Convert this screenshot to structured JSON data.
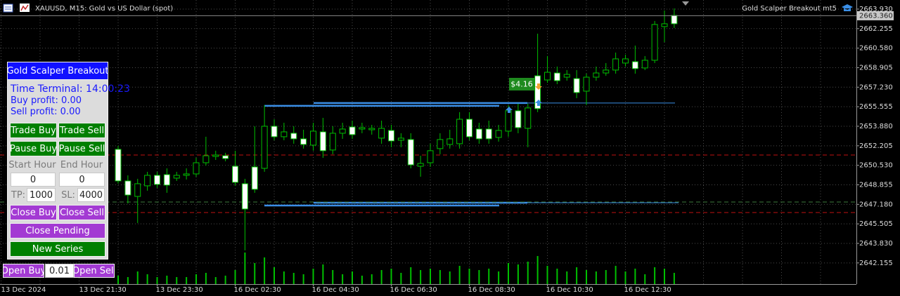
{
  "header": {
    "symbol": "XAUUSD, M15:  Gold vs US Dollar (spot)",
    "expert": "Gold Scalper Breakout mt5"
  },
  "chart_data": {
    "type": "candlestick",
    "earlier_labels": [
      "13 Dec 2024",
      "13 Dec 21:30"
    ],
    "categories": [
      null,
      null,
      null,
      null,
      "13 Dec 23:30",
      null,
      null,
      null,
      null,
      null,
      null,
      null,
      "16 Dec 02:30",
      null,
      null,
      null,
      null,
      null,
      null,
      null,
      "16 Dec 04:30",
      null,
      null,
      null,
      null,
      null,
      null,
      null,
      "16 Dec 06:30",
      null,
      null,
      null,
      null,
      null,
      null,
      null,
      "16 Dec 08:30",
      null,
      null,
      null,
      null,
      null,
      null,
      null,
      "16 Dec 10:30",
      null,
      null,
      null,
      null,
      null,
      null,
      null,
      "16 Dec 12:30",
      null,
      null,
      null,
      null,
      null
    ],
    "candles": [
      [
        2649.19,
        2652.2,
        2648.95,
        2651.9
      ],
      [
        2647.98,
        2649.67,
        2647.26,
        2649.19
      ],
      [
        2648.95,
        2649.37,
        2645.58,
        2647.86
      ],
      [
        2649.67,
        2649.97,
        2648.35,
        2648.77
      ],
      [
        2648.89,
        2649.97,
        2648.59,
        2649.67
      ],
      [
        2648.83,
        2650.27,
        2648.17,
        2649.73
      ],
      [
        2649.67,
        2649.97,
        2649.19,
        2649.43
      ],
      [
        2649.79,
        2650.27,
        2649.31,
        2649.67
      ],
      [
        2650.75,
        2651.17,
        2649.55,
        2649.79
      ],
      [
        2651.35,
        2652.98,
        2650.51,
        2650.75
      ],
      [
        2651.41,
        2651.78,
        2650.99,
        2651.29
      ],
      [
        2651.11,
        2651.6,
        2650.87,
        2651.35
      ],
      [
        2649.07,
        2651.78,
        2648.77,
        2650.45
      ],
      [
        2646.78,
        2649.37,
        2643.23,
        2648.95
      ],
      [
        2648.47,
        2653.88,
        2648.17,
        2650.39
      ],
      [
        2653.88,
        2655.69,
        2649.97,
        2650.27
      ],
      [
        2652.98,
        2654.48,
        2652.68,
        2653.88
      ],
      [
        2653.4,
        2654.18,
        2652.68,
        2652.98
      ],
      [
        2652.8,
        2653.88,
        2652.38,
        2653.28
      ],
      [
        2652.32,
        2653.58,
        2651.96,
        2652.8
      ],
      [
        2653.46,
        2654.18,
        2651.78,
        2652.26
      ],
      [
        2651.78,
        2654.6,
        2651.17,
        2653.4
      ],
      [
        2653.28,
        2653.88,
        2651.48,
        2651.84
      ],
      [
        2653.64,
        2654.18,
        2652.8,
        2653.28
      ],
      [
        2653.16,
        2654.36,
        2652.8,
        2653.82
      ],
      [
        2653.76,
        2654.18,
        2653.28,
        2653.64
      ],
      [
        2653.7,
        2654.0,
        2653.16,
        2653.58
      ],
      [
        2653.7,
        2654.36,
        2652.38,
        2652.86
      ],
      [
        2652.62,
        2654.0,
        2652.08,
        2653.52
      ],
      [
        2652.86,
        2653.28,
        2652.08,
        2652.68
      ],
      [
        2650.57,
        2653.28,
        2650.27,
        2652.74
      ],
      [
        2650.69,
        2651.35,
        2649.55,
        2650.45
      ],
      [
        2651.78,
        2652.38,
        2650.39,
        2650.75
      ],
      [
        2652.74,
        2653.28,
        2651.48,
        2651.96
      ],
      [
        2652.8,
        2653.58,
        2651.96,
        2652.32
      ],
      [
        2654.48,
        2655.09,
        2651.96,
        2652.38
      ],
      [
        2652.98,
        2655.09,
        2652.68,
        2654.48
      ],
      [
        2652.8,
        2654.18,
        2652.38,
        2653.64
      ],
      [
        2652.8,
        2654.36,
        2652.38,
        2653.64
      ],
      [
        2653.52,
        2654.0,
        2652.56,
        2652.92
      ],
      [
        2655.21,
        2655.69,
        2652.98,
        2653.46
      ],
      [
        2653.76,
        2655.81,
        2653.28,
        2655.21
      ],
      [
        2655.45,
        2655.81,
        2652.08,
        2653.7
      ],
      [
        2655.39,
        2661.82,
        2655.09,
        2658.21
      ],
      [
        2658.51,
        2659.9,
        2657.61,
        2657.85
      ],
      [
        2657.79,
        2659.0,
        2657.49,
        2658.45
      ],
      [
        2658.33,
        2658.7,
        2657.79,
        2658.09
      ],
      [
        2656.77,
        2658.7,
        2656.29,
        2657.97
      ],
      [
        2658.09,
        2658.39,
        2655.69,
        2656.89
      ],
      [
        2658.45,
        2659.0,
        2657.79,
        2658.09
      ],
      [
        2658.7,
        2659.3,
        2658.21,
        2658.45
      ],
      [
        2659.66,
        2660.2,
        2658.39,
        2658.7
      ],
      [
        2659.66,
        2660.02,
        2659.0,
        2659.3
      ],
      [
        2658.82,
        2660.8,
        2658.39,
        2659.42
      ],
      [
        2659.54,
        2659.9,
        2658.7,
        2658.88
      ],
      [
        2662.61,
        2662.91,
        2659.3,
        2659.54
      ],
      [
        2662.67,
        2663.81,
        2661.1,
        2662.43
      ],
      [
        2662.67,
        2663.99,
        2662.31,
        2663.39
      ]
    ],
    "volumes": [
      12,
      10,
      18,
      14,
      10,
      12,
      10,
      10,
      14,
      16,
      10,
      12,
      20,
      45,
      30,
      38,
      24,
      18,
      16,
      14,
      22,
      28,
      20,
      14,
      18,
      12,
      14,
      20,
      22,
      16,
      24,
      20,
      22,
      20,
      18,
      26,
      22,
      20,
      22,
      18,
      30,
      28,
      32,
      40,
      26,
      22,
      18,
      24,
      20,
      18,
      20,
      26,
      18,
      22,
      14,
      24,
      22,
      16
    ],
    "bull_color": "#ffffff",
    "bear_color": "#000000",
    "line_color": "#00c000",
    "volume_color": "#00c000",
    "ylim": [
      2640.34,
      2664.71
    ],
    "yticks": [
      {
        "value": 2663.93,
        "label": "2663.930"
      },
      {
        "value": 2662.255,
        "label": "2662.255"
      },
      {
        "value": 2660.58,
        "label": "2660.580"
      },
      {
        "value": 2658.905,
        "label": "2658.905"
      },
      {
        "value": 2657.23,
        "label": "2657.230"
      },
      {
        "value": 2655.555,
        "label": "2655.555"
      },
      {
        "value": 2653.88,
        "label": "2653.880"
      },
      {
        "value": 2652.205,
        "label": "2652.205"
      },
      {
        "value": 2650.53,
        "label": "2650.530"
      },
      {
        "value": 2648.855,
        "label": "2648.855"
      },
      {
        "value": 2647.18,
        "label": "2647.180"
      },
      {
        "value": 2645.505,
        "label": "2645.505"
      },
      {
        "value": 2643.83,
        "label": "2643.830"
      },
      {
        "value": 2642.155,
        "label": "2642.155"
      }
    ],
    "grid": true,
    "bid": {
      "value": 2663.36,
      "label": "2663.360"
    },
    "levels": [
      {
        "price": 2655.63,
        "color": "#3a8ee6",
        "style": "solid"
      },
      {
        "price": 2655.87,
        "color": "#3a8ee6",
        "style": "solid"
      },
      {
        "price": 2647.08,
        "color": "#3a8ee6",
        "style": "solid"
      },
      {
        "price": 2647.32,
        "color": "#3a8ee6",
        "style": "solid"
      },
      {
        "price": 2651.41,
        "color": "#c01010",
        "style": "dashed"
      },
      {
        "price": 2646.48,
        "color": "#c01010",
        "style": "dashed"
      },
      {
        "price": 2647.38,
        "color": "#3c7a3c",
        "style": "dashed"
      }
    ],
    "annotation": "$4.16"
  },
  "panel": {
    "title": "Gold Scalper Breakout",
    "time": "Time Terminal: 14:00:23",
    "buy_profit": "Buy profit: 0.00",
    "sell_profit": "Sell profit: 0.00",
    "trade_buy": "Trade Buy",
    "trade_sell": "Trade Sell",
    "pause_buy": "Pause Buy",
    "pause_sell": "Pause Sell",
    "start_hour_label": "Start Hour",
    "end_hour_label": "End Hour",
    "start_hour": "0",
    "end_hour": "0",
    "tp_label": "TP:",
    "tp": "1000",
    "sl_label": "SL:",
    "sl": "4000",
    "close_buy": "Close Buy",
    "close_sell": "Close Sell",
    "close_pending": "Close Pending",
    "new_series": "New Series"
  },
  "order_bar": {
    "open_buy": "Open Buy",
    "lot": "0.01",
    "open_sell": "Open Sell"
  }
}
